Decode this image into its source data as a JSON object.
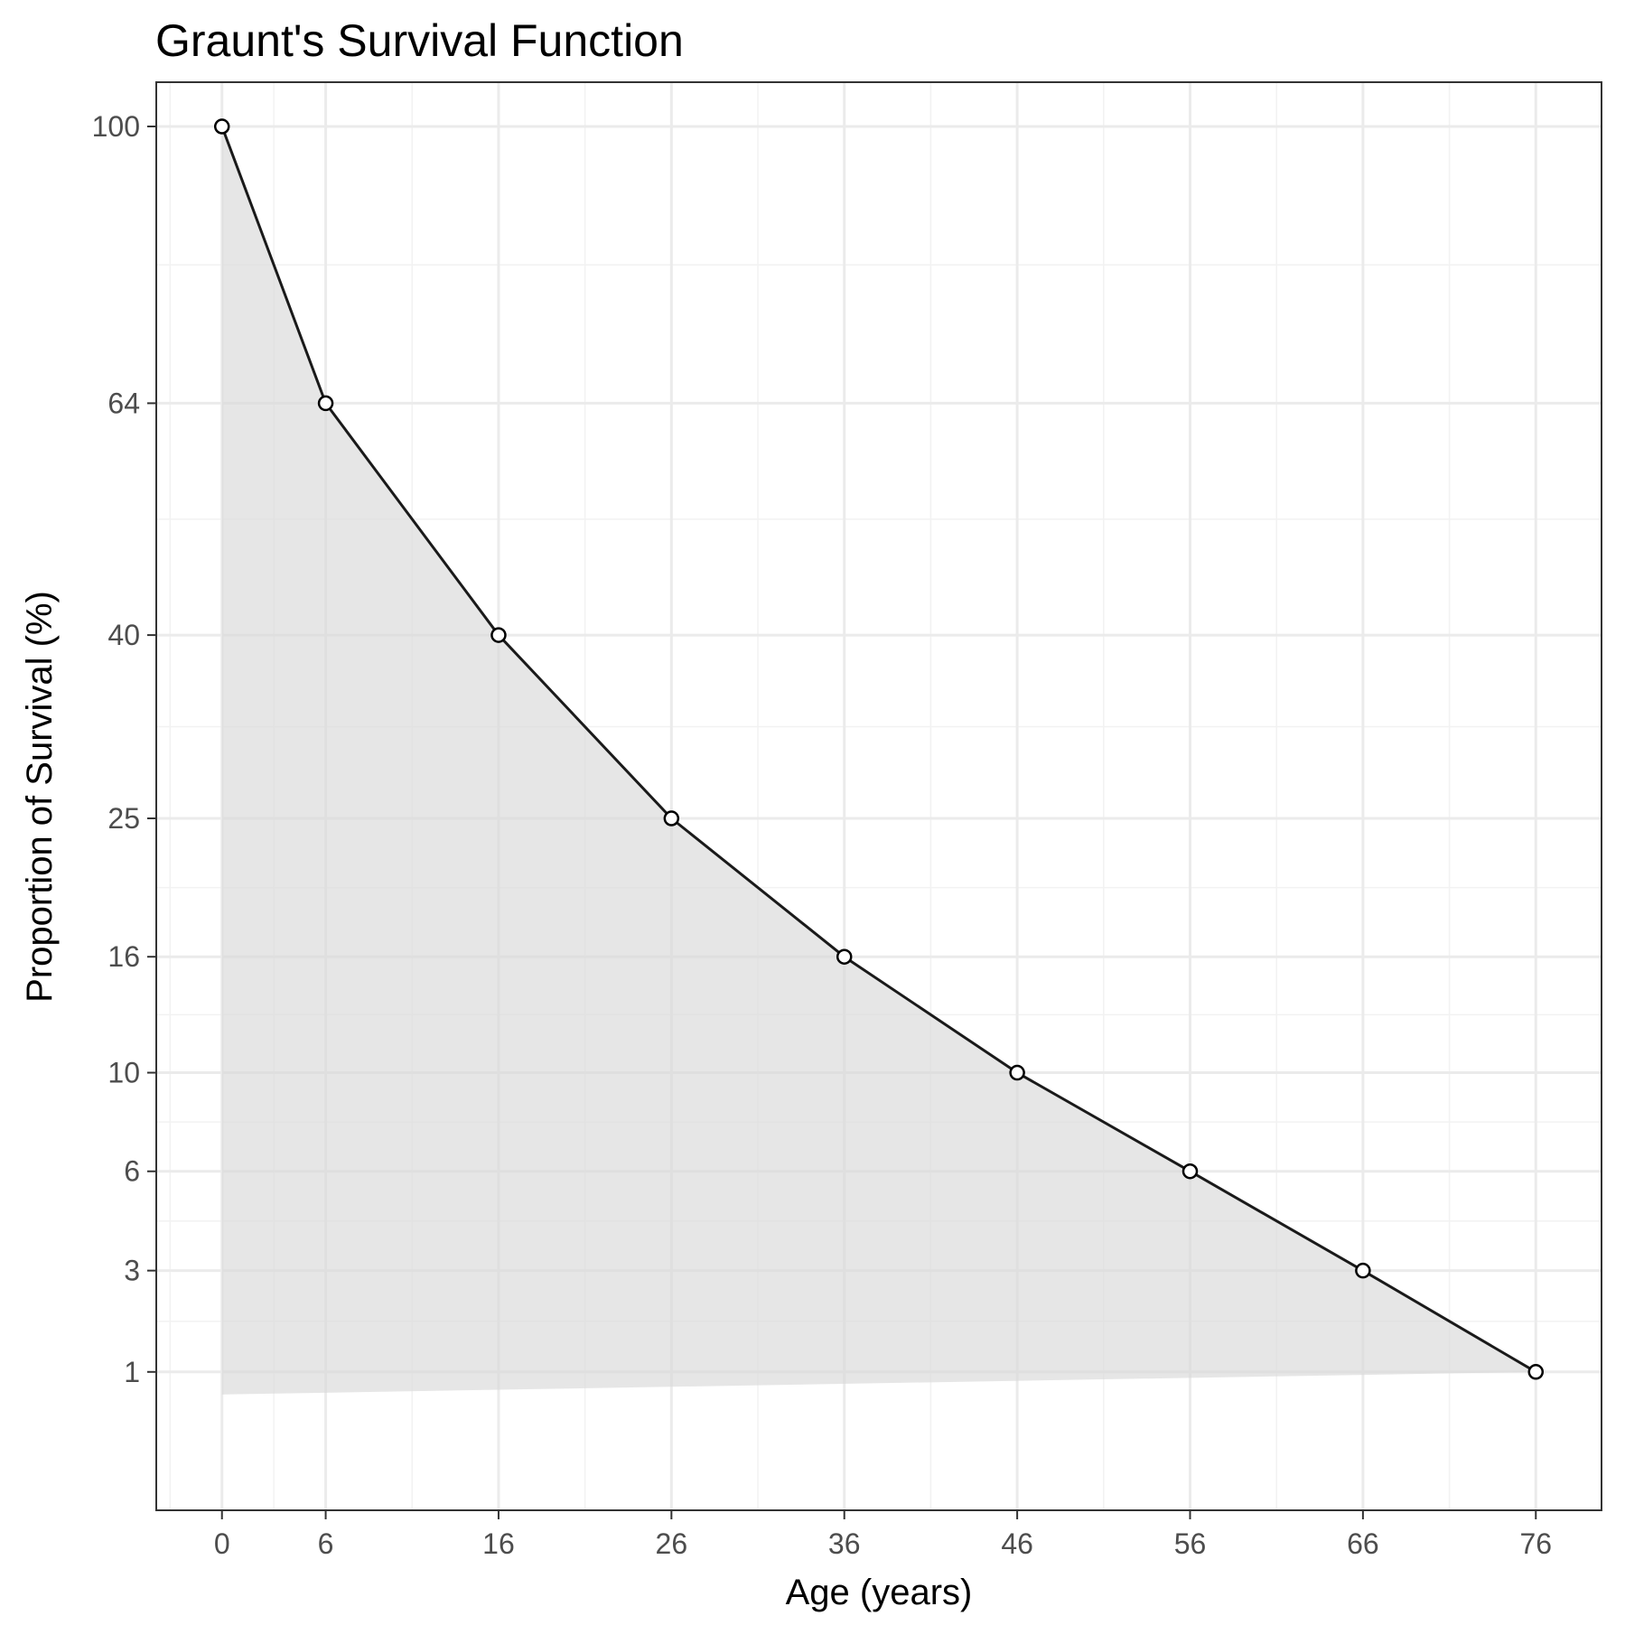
{
  "chart_data": {
    "type": "line",
    "title": "Graunt's Survival Function",
    "xlabel": "Age (years)",
    "ylabel": "Proportion of Survival (%)",
    "x": [
      0,
      6,
      16,
      26,
      36,
      46,
      56,
      66,
      76
    ],
    "series": [
      {
        "values": [
          100,
          64,
          40,
          25,
          16,
          10,
          6,
          3,
          1
        ]
      }
    ],
    "x_ticks": [
      0,
      6,
      16,
      26,
      36,
      46,
      56,
      66,
      76
    ],
    "x_tick_labels": [
      "0",
      "6",
      "16",
      "26",
      "36",
      "46",
      "56",
      "66",
      "76"
    ],
    "y_ticks": [
      1,
      3,
      6,
      10,
      16,
      25,
      40,
      64,
      100
    ],
    "y_tick_labels": [
      "1",
      "3",
      "6",
      "10",
      "16",
      "25",
      "40",
      "64",
      "100"
    ],
    "y_scale": "sqrt",
    "xlim": [
      -3.8,
      79.8
    ],
    "ylim": [
      -0.2,
      106.5
    ],
    "grid": true,
    "legend": "none",
    "shaded_area_under_line": true,
    "colors": {
      "line": "#1a1a1a",
      "point_fill": "#ffffff",
      "point_stroke": "#000000",
      "area_fill": "#d9d9d9",
      "grid_major": "#ebebeb",
      "grid_minor": "#f2f2f2",
      "panel_border": "#333333",
      "tick_text": "#4d4d4d"
    }
  }
}
